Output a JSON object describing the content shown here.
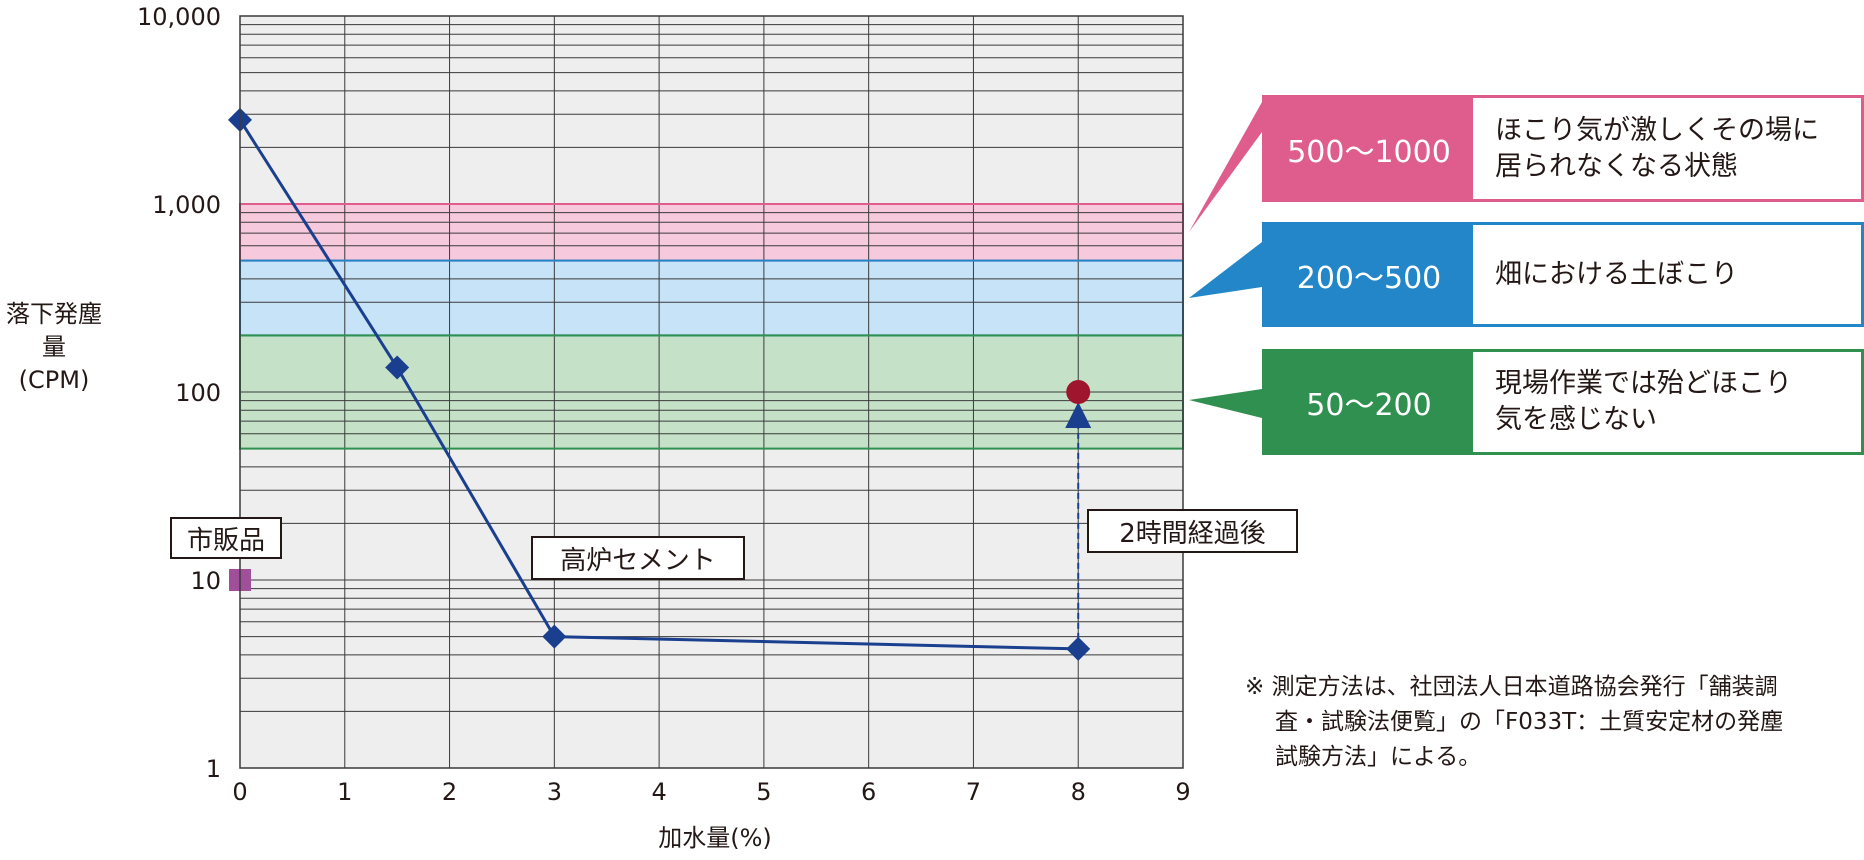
{
  "chart_data": {
    "type": "line",
    "title": "",
    "xlabel": "加水量(%)",
    "ylabel": [
      "落下発塵量",
      "(CPM)"
    ],
    "xlim": [
      0,
      9
    ],
    "ylim": [
      1,
      10000
    ],
    "yscale": "log",
    "x_ticks": [
      "0",
      "1",
      "2",
      "3",
      "4",
      "5",
      "6",
      "7",
      "8",
      "9"
    ],
    "y_ticks": [
      {
        "value": 1,
        "label": "1"
      },
      {
        "value": 10,
        "label": "10"
      },
      {
        "value": 100,
        "label": "100"
      },
      {
        "value": 1000,
        "label": "1,000"
      },
      {
        "value": 10000,
        "label": "10,000"
      }
    ],
    "grid": true,
    "series": [
      {
        "name": "高炉セメント",
        "marker": "diamond",
        "color": "#1a3f8f",
        "x": [
          0,
          1.5,
          3,
          8
        ],
        "y": [
          2800,
          135,
          5,
          4.3
        ]
      }
    ],
    "points": [
      {
        "name": "市販品",
        "marker": "square",
        "color": "#a0509a",
        "x": 0,
        "y": 10
      },
      {
        "name": "2時間経過後",
        "marker": "circle",
        "color": "#a0152e",
        "x": 8,
        "y": 100
      }
    ],
    "arrow": {
      "from": {
        "x": 8,
        "y": 4.3
      },
      "to": {
        "x": 8,
        "y": 100
      }
    },
    "bands": [
      {
        "range": [
          500,
          1000
        ],
        "label": "500〜1000",
        "desc": [
          "ほこり気が激しくその場に",
          "居られなくなる状態"
        ],
        "fill": "#f6c9dc",
        "stroke": "#df5d8d"
      },
      {
        "range": [
          200,
          500
        ],
        "label": "200〜500",
        "desc": [
          "畑における土ぼこり"
        ],
        "fill": "#c6e3f7",
        "stroke": "#2286c8"
      },
      {
        "range": [
          50,
          200
        ],
        "label": "50〜200",
        "desc": [
          "現場作業では殆どほこり",
          "気を感じない"
        ],
        "fill": "#c5e2c9",
        "stroke": "#2f9050"
      }
    ],
    "annotations": {
      "commercial": "市販品",
      "slag_cement": "高炉セメント",
      "after_2h": "2時間経過後"
    }
  },
  "footnote": {
    "line1": "※ 測定方法は、社団法人日本道路協会発行「舗装調",
    "line2": "査・試験法便覧」の「F033T：土質安定材の発塵",
    "line3": "試験方法」による。"
  }
}
